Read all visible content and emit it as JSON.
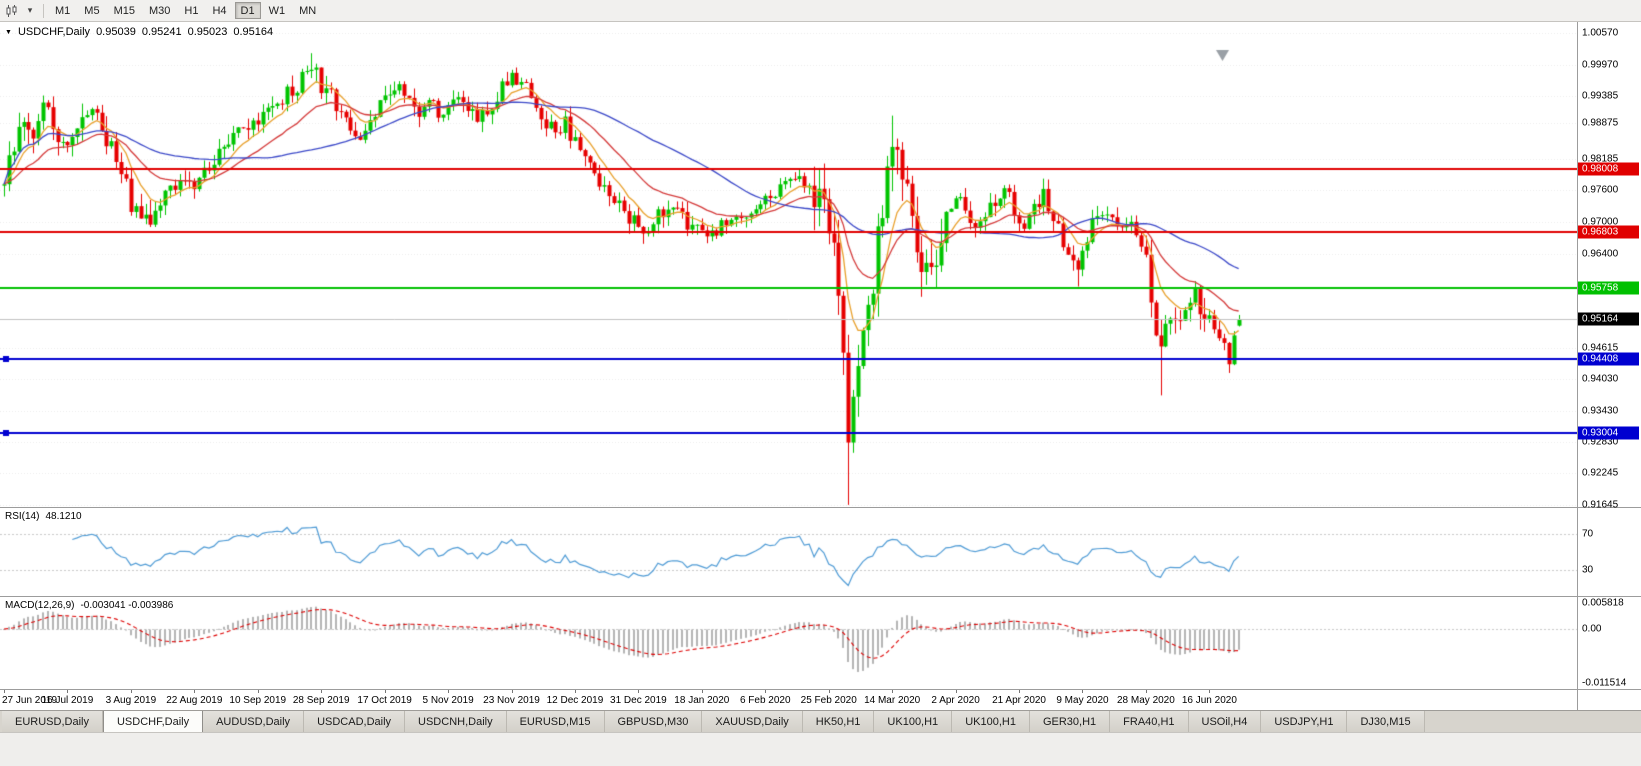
{
  "toolbar": {
    "timeframes": [
      {
        "label": "M1",
        "active": false
      },
      {
        "label": "M5",
        "active": false
      },
      {
        "label": "M15",
        "active": false
      },
      {
        "label": "M30",
        "active": false
      },
      {
        "label": "H1",
        "active": false
      },
      {
        "label": "H4",
        "active": false
      },
      {
        "label": "D1",
        "active": true
      },
      {
        "label": "W1",
        "active": false
      },
      {
        "label": "MN",
        "active": false
      }
    ]
  },
  "chart_header": {
    "symbol": "USDCHF,Daily",
    "open": "0.95039",
    "high": "0.95241",
    "low": "0.95023",
    "close": "0.95164"
  },
  "rsi_panel": {
    "name": "RSI(14)",
    "value": "48.1210",
    "levels": [
      {
        "label": "70",
        "value": 70
      },
      {
        "label": "30",
        "value": 30
      }
    ]
  },
  "macd_panel": {
    "name": "MACD(12,26,9)",
    "value": "-0.003041 -0.003986",
    "axis_labels": [
      {
        "label": "0.005818",
        "value": 0.005818
      },
      {
        "label": "0.00",
        "value": 0
      },
      {
        "label": "-0.011514",
        "value": -0.011514
      }
    ]
  },
  "chart_data": {
    "type": "candlestick",
    "symbol": "USDCHF",
    "timeframe": "Daily",
    "num_candles": 254,
    "y_range": {
      "top": 1.0078,
      "bottom": 0.9161
    },
    "y_tick_labels": [
      "1.00570",
      "0.99970",
      "0.99385",
      "0.98875",
      "0.98185",
      "0.97600",
      "0.97000",
      "0.96400",
      "0.94615",
      "0.94030",
      "0.93430",
      "0.92830",
      "0.92245",
      "0.91645"
    ],
    "x_tick_labels": [
      {
        "i": 0,
        "label": "27 Jun 2019"
      },
      {
        "i": 13,
        "label": "16 Jul 2019"
      },
      {
        "i": 26,
        "label": "3 Aug 2019"
      },
      {
        "i": 39,
        "label": "22 Aug 2019"
      },
      {
        "i": 52,
        "label": "10 Sep 2019"
      },
      {
        "i": 65,
        "label": "28 Sep 2019"
      },
      {
        "i": 78,
        "label": "17 Oct 2019"
      },
      {
        "i": 91,
        "label": "5 Nov 2019"
      },
      {
        "i": 104,
        "label": "23 Nov 2019"
      },
      {
        "i": 117,
        "label": "12 Dec 2019"
      },
      {
        "i": 130,
        "label": "31 Dec 2019"
      },
      {
        "i": 143,
        "label": "18 Jan 2020"
      },
      {
        "i": 156,
        "label": "6 Feb 2020"
      },
      {
        "i": 169,
        "label": "25 Feb 2020"
      },
      {
        "i": 182,
        "label": "14 Mar 2020"
      },
      {
        "i": 195,
        "label": "2 Apr 2020"
      },
      {
        "i": 208,
        "label": "21 Apr 2020"
      },
      {
        "i": 221,
        "label": "9 May 2020"
      },
      {
        "i": 234,
        "label": "28 May 2020"
      },
      {
        "i": 247,
        "label": "16 Jun 2020"
      }
    ],
    "horizontal_lines": [
      {
        "price": 0.98008,
        "label": "0.98008",
        "color": "#e00000",
        "width": 2,
        "handles": false
      },
      {
        "price": 0.96803,
        "label": "0.96803",
        "color": "#e00000",
        "width": 2,
        "handles": false
      },
      {
        "price": 0.95758,
        "label": "0.95758",
        "color": "#00c000",
        "width": 2,
        "handles": false
      },
      {
        "price": 0.94408,
        "label": "0.94408",
        "color": "#0000d0",
        "width": 2,
        "handles": true
      },
      {
        "price": 0.93004,
        "label": "0.93004",
        "color": "#0000d0",
        "width": 2,
        "handles": true
      }
    ],
    "current_price": {
      "price": 0.95164,
      "label": "0.95164",
      "color": "#000000"
    },
    "last_candle": {
      "o": 0.95039,
      "h": 0.95241,
      "l": 0.95023,
      "c": 0.95164
    },
    "anchors": [
      [
        0,
        0.9775
      ],
      [
        2,
        0.985
      ],
      [
        4,
        0.9888
      ],
      [
        6,
        0.9845
      ],
      [
        8,
        0.9915
      ],
      [
        10,
        0.9878
      ],
      [
        13,
        0.984
      ],
      [
        16,
        0.9898
      ],
      [
        18,
        0.9918
      ],
      [
        20,
        0.9885
      ],
      [
        22,
        0.984
      ],
      [
        24,
        0.9792
      ],
      [
        26,
        0.973
      ],
      [
        28,
        0.97
      ],
      [
        31,
        0.9722
      ],
      [
        34,
        0.9758
      ],
      [
        37,
        0.9778
      ],
      [
        39,
        0.9768
      ],
      [
        42,
        0.9802
      ],
      [
        45,
        0.9842
      ],
      [
        48,
        0.9868
      ],
      [
        51,
        0.9888
      ],
      [
        54,
        0.9902
      ],
      [
        57,
        0.9928
      ],
      [
        60,
        0.9962
      ],
      [
        63,
        0.9992
      ],
      [
        65,
        0.9958
      ],
      [
        67,
        0.9935
      ],
      [
        69,
        0.9905
      ],
      [
        71,
        0.9875
      ],
      [
        73,
        0.9858
      ],
      [
        75,
        0.9888
      ],
      [
        77,
        0.9922
      ],
      [
        79,
        0.9948
      ],
      [
        81,
        0.9962
      ],
      [
        83,
        0.994
      ],
      [
        85,
        0.9912
      ],
      [
        87,
        0.9928
      ],
      [
        89,
        0.9905
      ],
      [
        91,
        0.9928
      ],
      [
        93,
        0.9948
      ],
      [
        95,
        0.9918
      ],
      [
        97,
        0.9888
      ],
      [
        99,
        0.9912
      ],
      [
        101,
        0.9942
      ],
      [
        103,
        0.9962
      ],
      [
        105,
        0.9972
      ],
      [
        107,
        0.9948
      ],
      [
        109,
        0.9918
      ],
      [
        111,
        0.9888
      ],
      [
        113,
        0.9862
      ],
      [
        115,
        0.9885
      ],
      [
        117,
        0.9848
      ],
      [
        119,
        0.9818
      ],
      [
        121,
        0.9792
      ],
      [
        123,
        0.9768
      ],
      [
        125,
        0.9748
      ],
      [
        127,
        0.9722
      ],
      [
        129,
        0.97
      ],
      [
        131,
        0.9688
      ],
      [
        133,
        0.9702
      ],
      [
        135,
        0.9718
      ],
      [
        137,
        0.9728
      ],
      [
        139,
        0.9705
      ],
      [
        141,
        0.9688
      ],
      [
        143,
        0.9672
      ],
      [
        145,
        0.9682
      ],
      [
        147,
        0.9695
      ],
      [
        149,
        0.9718
      ],
      [
        151,
        0.97
      ],
      [
        153,
        0.9712
      ],
      [
        155,
        0.9732
      ],
      [
        157,
        0.9745
      ],
      [
        159,
        0.9762
      ],
      [
        161,
        0.9778
      ],
      [
        163,
        0.9785
      ],
      [
        165,
        0.9772
      ],
      [
        167,
        0.9748
      ],
      [
        169,
        0.97
      ],
      [
        170,
        0.964
      ],
      [
        171,
        0.956
      ],
      [
        172,
        0.946
      ],
      [
        173,
        0.93
      ],
      [
        174,
        0.938
      ],
      [
        175,
        0.945
      ],
      [
        176,
        0.9515
      ],
      [
        178,
        0.959
      ],
      [
        180,
        0.9725
      ],
      [
        181,
        0.982
      ],
      [
        182,
        0.9872
      ],
      [
        183,
        0.9832
      ],
      [
        185,
        0.9742
      ],
      [
        187,
        0.965
      ],
      [
        189,
        0.9592
      ],
      [
        191,
        0.9652
      ],
      [
        193,
        0.9712
      ],
      [
        195,
        0.9752
      ],
      [
        197,
        0.9728
      ],
      [
        199,
        0.9692
      ],
      [
        201,
        0.9705
      ],
      [
        203,
        0.9742
      ],
      [
        205,
        0.9762
      ],
      [
        207,
        0.9722
      ],
      [
        209,
        0.9695
      ],
      [
        211,
        0.973
      ],
      [
        213,
        0.9755
      ],
      [
        215,
        0.9705
      ],
      [
        217,
        0.9665
      ],
      [
        219,
        0.963
      ],
      [
        220,
        0.9605
      ],
      [
        221,
        0.9642
      ],
      [
        223,
        0.9695
      ],
      [
        225,
        0.9725
      ],
      [
        227,
        0.9705
      ],
      [
        229,
        0.9682
      ],
      [
        231,
        0.97
      ],
      [
        233,
        0.9662
      ],
      [
        234,
        0.964
      ],
      [
        235,
        0.956
      ],
      [
        236,
        0.948
      ],
      [
        237,
        0.9442
      ],
      [
        238,
        0.949
      ],
      [
        240,
        0.952
      ],
      [
        242,
        0.9542
      ],
      [
        244,
        0.9556
      ],
      [
        246,
        0.953
      ],
      [
        248,
        0.9492
      ],
      [
        250,
        0.9458
      ],
      [
        251,
        0.9445
      ],
      [
        252,
        0.9498
      ],
      [
        253,
        0.95164
      ]
    ],
    "wick_overrides": [
      {
        "i": 8,
        "high": 0.9939
      },
      {
        "i": 63,
        "high": 1.0019
      },
      {
        "i": 105,
        "high": 0.9992
      },
      {
        "i": 173,
        "low": 0.9165
      },
      {
        "i": 182,
        "high": 0.9901
      },
      {
        "i": 220,
        "low": 0.9578
      },
      {
        "i": 237,
        "low": 0.9372
      }
    ],
    "volatility_zones": [
      {
        "from": 0,
        "to": 30,
        "mult": 1.4
      },
      {
        "from": 58,
        "to": 68,
        "mult": 1.25
      },
      {
        "from": 166,
        "to": 192,
        "mult": 2.4
      },
      {
        "from": 234,
        "to": 246,
        "mult": 1.6
      }
    ],
    "moving_averages": [
      {
        "type": "ema",
        "period": 8,
        "color": "#e8a02c"
      },
      {
        "type": "ema",
        "period": 21,
        "color": "#d43a3a"
      },
      {
        "type": "sma",
        "period": 45,
        "color": "#3b48c8"
      }
    ],
    "indicators": {
      "rsi": {
        "period": 14,
        "last_value": "48.1210",
        "levels": [
          70,
          30
        ]
      },
      "macd": {
        "fast": 12,
        "slow": 26,
        "signal": 9,
        "macd_value": "-0.003041",
        "signal_value": "-0.003986",
        "range": {
          "top": 0.0063,
          "bottom": -0.0118
        }
      }
    },
    "colors": {
      "up": "#00c400",
      "down": "#e60000",
      "grid": "#ebebeb",
      "rsi_line": "#4f9bd5",
      "macd_hist": "#b4b4b4",
      "macd_signal": "#dd0000",
      "current_line": "#c0c0c0"
    }
  },
  "tabs": [
    {
      "label": "EURUSD,Daily",
      "active": false
    },
    {
      "label": "USDCHF,Daily",
      "active": true
    },
    {
      "label": "AUDUSD,Daily",
      "active": false
    },
    {
      "label": "USDCAD,Daily",
      "active": false
    },
    {
      "label": "USDCNH,Daily",
      "active": false
    },
    {
      "label": "EURUSD,M15",
      "active": false
    },
    {
      "label": "GBPUSD,M30",
      "active": false
    },
    {
      "label": "XAUUSD,Daily",
      "active": false
    },
    {
      "label": "HK50,H1",
      "active": false
    },
    {
      "label": "UK100,H1",
      "active": false
    },
    {
      "label": "UK100,H1",
      "active": false
    },
    {
      "label": "GER30,H1",
      "active": false
    },
    {
      "label": "FRA40,H1",
      "active": false
    },
    {
      "label": "USOil,H4",
      "active": false
    },
    {
      "label": "USDJPY,H1",
      "active": false
    },
    {
      "label": "DJ30,M15",
      "active": false
    }
  ]
}
